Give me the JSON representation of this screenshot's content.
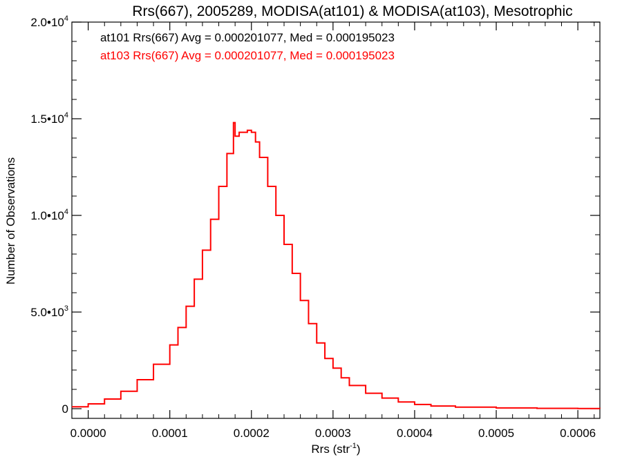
{
  "chart_data": {
    "type": "line",
    "title": "Rrs(667), 2005289, MODISA(at101) & MODISA(at103), Mesotrophic",
    "xlabel": "Rrs (str",
    "xlabel_sup": "-1",
    "xlabel_close": ")",
    "ylabel": "Number of Observations",
    "xlim": [
      -2e-05,
      0.000627
    ],
    "ylim": [
      -500,
      20000
    ],
    "grid": false,
    "x_ticks": [
      0.0,
      0.0001,
      0.0002,
      0.0003,
      0.0004,
      0.0005,
      0.0006
    ],
    "x_tick_labels": [
      "0.0000",
      "0.0001",
      "0.0002",
      "0.0003",
      "0.0004",
      "0.0005",
      "0.0006"
    ],
    "y_ticks": [
      0,
      5000,
      10000,
      15000,
      20000
    ],
    "y_tick_labels": [
      {
        "base": "0",
        "exp": ""
      },
      {
        "base": "5.0•10",
        "exp": "3"
      },
      {
        "base": "1.0•10",
        "exp": "4"
      },
      {
        "base": "1.5•10",
        "exp": "4"
      },
      {
        "base": "2.0•10",
        "exp": "4"
      }
    ],
    "legend_position": "top-left",
    "annotations": [
      {
        "text": "at101 Rrs(667) Avg = 0.000201077, Med = 0.000195023",
        "color": "#000000"
      },
      {
        "text": "at103 Rrs(667) Avg = 0.000201077, Med = 0.000195023",
        "color": "#ff0000"
      }
    ],
    "series": [
      {
        "name": "at103",
        "color": "#ff0000",
        "style": "step",
        "x": [
          -2e-05,
          0.0,
          2e-05,
          4e-05,
          6e-05,
          8e-05,
          0.0001,
          0.00011,
          0.00012,
          0.00013,
          0.00014,
          0.00015,
          0.00016,
          0.00017,
          0.000178,
          0.00018,
          0.000185,
          0.00019,
          0.000195,
          0.0002,
          0.000205,
          0.00021,
          0.00022,
          0.00023,
          0.00024,
          0.00025,
          0.00026,
          0.00027,
          0.00028,
          0.00029,
          0.0003,
          0.00031,
          0.00032,
          0.00034,
          0.00036,
          0.00038,
          0.0004,
          0.00042,
          0.00045,
          0.0005,
          0.00055,
          0.0006,
          0.000627
        ],
        "y": [
          100,
          250,
          500,
          900,
          1500,
          2300,
          3300,
          4200,
          5300,
          6700,
          8200,
          9800,
          11500,
          13200,
          14800,
          14100,
          14300,
          14300,
          14400,
          14300,
          13800,
          13000,
          11500,
          10000,
          8500,
          7000,
          5600,
          4400,
          3400,
          2600,
          2100,
          1600,
          1200,
          800,
          550,
          350,
          220,
          140,
          80,
          40,
          20,
          10,
          5
        ]
      }
    ]
  }
}
